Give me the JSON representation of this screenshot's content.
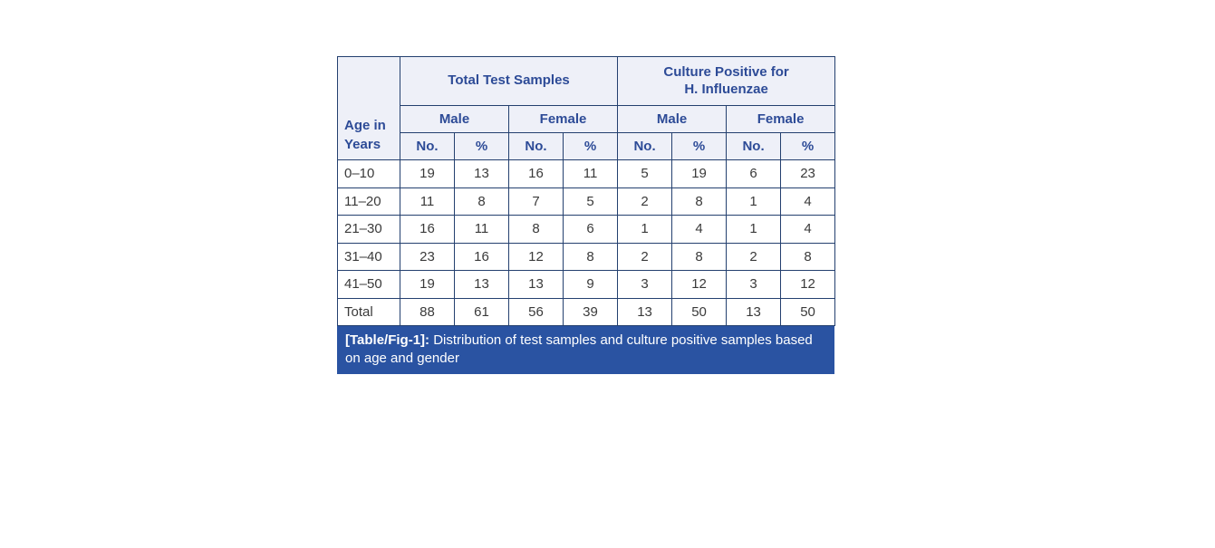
{
  "colors": {
    "border": "#24406f",
    "header_bg": "#eef0f8",
    "header_text": "#2d4b97",
    "body_text": "#3a3a3a",
    "caption_bg": "#2a53a2",
    "caption_text": "#ffffff",
    "page_bg": "#ffffff"
  },
  "chart_data": {
    "type": "table",
    "title": "Distribution of test samples and culture positive samples based on age and gender",
    "header": {
      "corner": "Age in Years",
      "groups": [
        "Total Test Samples",
        "Culture Positive for\nH. Influenzae"
      ],
      "subgroups": [
        "Male",
        "Female",
        "Male",
        "Female"
      ],
      "columns": [
        "No.",
        "%",
        "No.",
        "%",
        "No.",
        "%",
        "No.",
        "%"
      ]
    },
    "rows": [
      {
        "label": "0–10",
        "values": [
          19,
          13,
          16,
          11,
          5,
          19,
          6,
          23
        ]
      },
      {
        "label": "11–20",
        "values": [
          11,
          8,
          7,
          5,
          2,
          8,
          1,
          4
        ]
      },
      {
        "label": "21–30",
        "values": [
          16,
          11,
          8,
          6,
          1,
          4,
          1,
          4
        ]
      },
      {
        "label": "31–40",
        "values": [
          23,
          16,
          12,
          8,
          2,
          8,
          2,
          8
        ]
      },
      {
        "label": "41–50",
        "values": [
          19,
          13,
          13,
          9,
          3,
          12,
          3,
          12
        ]
      },
      {
        "label": "Total",
        "values": [
          88,
          61,
          56,
          39,
          13,
          50,
          13,
          50
        ]
      }
    ],
    "caption": {
      "label": "[Table/Fig-1]:",
      "text": "Distribution of test samples and culture positive samples based on age and gender"
    }
  }
}
